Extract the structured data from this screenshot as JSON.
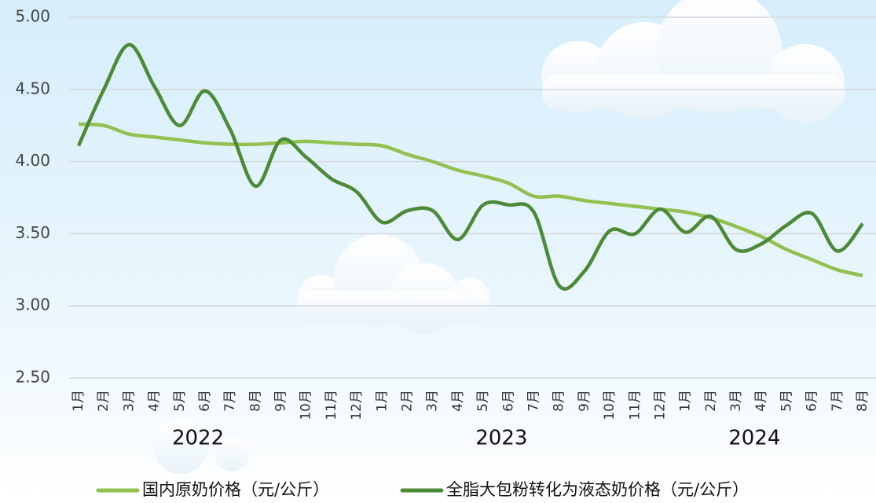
{
  "chart_data": {
    "type": "line",
    "category_groups": [
      {
        "name": "2022",
        "categories": [
          "1月",
          "2月",
          "3月",
          "4月",
          "5月",
          "6月",
          "7月",
          "8月",
          "9月",
          "10月",
          "11月",
          "12月"
        ]
      },
      {
        "name": "2023",
        "categories": [
          "1月",
          "2月",
          "3月",
          "4月",
          "5月",
          "6月",
          "7月",
          "8月",
          "9月",
          "10月",
          "11月",
          "12月"
        ]
      },
      {
        "name": "2024",
        "categories": [
          "1月",
          "2月",
          "3月",
          "4月",
          "5月",
          "6月",
          "7月",
          "8月"
        ]
      }
    ],
    "series": [
      {
        "name": "国内原奶价格（元/公斤）",
        "color": "#93c151",
        "values": [
          4.26,
          4.25,
          4.19,
          4.17,
          4.15,
          4.13,
          4.12,
          4.12,
          4.13,
          4.14,
          4.13,
          4.12,
          4.11,
          4.05,
          4.0,
          3.94,
          3.9,
          3.85,
          3.76,
          3.76,
          3.73,
          3.71,
          3.69,
          3.67,
          3.65,
          3.61,
          3.55,
          3.48,
          3.39,
          3.32,
          3.25,
          3.21
        ]
      },
      {
        "name": "全脂大包粉转化为液态奶价格（元/公斤）",
        "color": "#4c8a37",
        "values": [
          4.11,
          4.5,
          4.81,
          4.52,
          4.25,
          4.49,
          4.22,
          3.83,
          4.15,
          4.03,
          3.88,
          3.79,
          3.58,
          3.66,
          3.66,
          3.46,
          3.7,
          3.7,
          3.65,
          3.14,
          3.24,
          3.52,
          3.5,
          3.67,
          3.51,
          3.62,
          3.39,
          3.43,
          3.56,
          3.64,
          3.38,
          3.57
        ]
      }
    ],
    "ylim": [
      2.5,
      5.0
    ],
    "yticks": [
      {
        "value": 2.5,
        "label": "2.50"
      },
      {
        "value": 3,
        "label": "3.00"
      },
      {
        "value": 3.5,
        "label": "3.50"
      },
      {
        "value": 4,
        "label": "4.00"
      },
      {
        "value": 4.5,
        "label": "4.50"
      },
      {
        "value": 5,
        "label": "5.00"
      }
    ],
    "grid": true
  }
}
